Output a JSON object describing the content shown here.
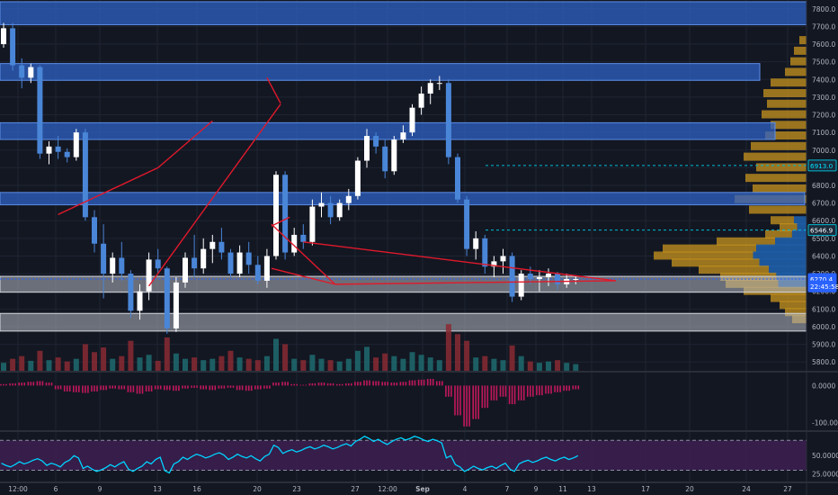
{
  "colors": {
    "background": "#131722",
    "grid": "#1e2433",
    "bullish": "#ffffff",
    "bearish": "#4a86d8",
    "trendline": "#e0192b",
    "resistance_zone": "#2f62c4",
    "support_zone": "#b4b8c1",
    "volume_up": "#1e6b6f",
    "volume_down": "#8a2a33",
    "macd_hist": "#c2185b",
    "rsi_line": "#00d4ff",
    "rsi_band": "#3b1e4f",
    "profile_gold": "#c8941e",
    "profile_blue": "#1f5ea8"
  },
  "chart_data": [
    {
      "type": "candlestick",
      "panel": "price",
      "ylim": [
        5750,
        7850
      ],
      "y_ticks": [
        "7800.0",
        "7700.0",
        "7600.0",
        "7500.0",
        "7400.0",
        "7300.0",
        "7200.0",
        "7100.0",
        "7000.0",
        "6900.0",
        "6800.0",
        "6700.0",
        "6600.0",
        "6500.0",
        "6400.0",
        "6300.0",
        "6200.0",
        "6100.0",
        "6000.0",
        "5900.0",
        "5800.0"
      ],
      "x_ticks": [
        "12:00",
        "6",
        "9",
        "13",
        "16",
        "20",
        "23",
        "27",
        "12:00",
        "Sep",
        "4",
        "7",
        "9",
        "11",
        "13",
        "17",
        "20",
        "24",
        "27"
      ],
      "grid": true,
      "price_labels": [
        {
          "label": "6913.0",
          "value": 6913
        },
        {
          "label": "6546.9",
          "value": 6547
        },
        {
          "label": "6270.4",
          "value": 6270
        },
        {
          "label": "22:45:58",
          "value": 6228
        }
      ],
      "zones": [
        {
          "type": "resistance",
          "low": 7710,
          "high": 7840,
          "x_end": 54
        },
        {
          "type": "resistance",
          "low": 7395,
          "high": 7490,
          "x_end": 46
        },
        {
          "type": "resistance",
          "low": 7060,
          "high": 7155,
          "x_end": 47
        },
        {
          "type": "resistance",
          "low": 6690,
          "high": 6760,
          "x_end": 48
        },
        {
          "type": "support",
          "low": 6195,
          "high": 6285,
          "x_end": 54
        },
        {
          "type": "support",
          "low": 5975,
          "high": 6075,
          "x_end": 54
        }
      ],
      "trendlines": [
        {
          "x1": 6,
          "y1": 6635,
          "x2": 17,
          "y2": 6900
        },
        {
          "x1": 17,
          "y1": 6900,
          "x2": 23,
          "y2": 7165
        },
        {
          "x1": 16,
          "y1": 6230,
          "x2": 30.5,
          "y2": 7260
        },
        {
          "x1": 29,
          "y1": 7410,
          "x2": 30.5,
          "y2": 7265
        },
        {
          "x1": 29.5,
          "y1": 6570,
          "x2": 31.5,
          "y2": 6620
        },
        {
          "x1": 29.5,
          "y1": 6330,
          "x2": 36.5,
          "y2": 6240
        },
        {
          "x1": 29.5,
          "y1": 6580,
          "x2": 36.5,
          "y2": 6240
        }
      ],
      "candles": [
        [
          7600,
          7720,
          7580,
          7690
        ],
        [
          7690,
          7720,
          7450,
          7480
        ],
        [
          7480,
          7520,
          7350,
          7410
        ],
        [
          7410,
          7490,
          7380,
          7470
        ],
        [
          7470,
          7480,
          6950,
          6980
        ],
        [
          6980,
          7050,
          6920,
          7020
        ],
        [
          7020,
          7080,
          6950,
          6990
        ],
        [
          6990,
          7010,
          6930,
          6960
        ],
        [
          6960,
          7120,
          6940,
          7100
        ],
        [
          7100,
          7120,
          6600,
          6620
        ],
        [
          6620,
          6660,
          6420,
          6470
        ],
        [
          6470,
          6580,
          6160,
          6300
        ],
        [
          6300,
          6420,
          6250,
          6390
        ],
        [
          6390,
          6480,
          6260,
          6300
        ],
        [
          6300,
          6320,
          6050,
          6090
        ],
        [
          6090,
          6240,
          6040,
          6200
        ],
        [
          6200,
          6420,
          6150,
          6380
        ],
        [
          6380,
          6440,
          6300,
          6330
        ],
        [
          6330,
          6340,
          5960,
          5990
        ],
        [
          5990,
          6280,
          5970,
          6250
        ],
        [
          6250,
          6420,
          6220,
          6390
        ],
        [
          6390,
          6520,
          6280,
          6330
        ],
        [
          6330,
          6500,
          6300,
          6440
        ],
        [
          6440,
          6520,
          6360,
          6480
        ],
        [
          6480,
          6560,
          6380,
          6420
        ],
        [
          6420,
          6440,
          6280,
          6300
        ],
        [
          6300,
          6460,
          6280,
          6420
        ],
        [
          6420,
          6480,
          6300,
          6350
        ],
        [
          6350,
          6400,
          6240,
          6260
        ],
        [
          6260,
          6440,
          6220,
          6400
        ],
        [
          6400,
          6880,
          6380,
          6860
        ],
        [
          6860,
          6880,
          6380,
          6420
        ],
        [
          6420,
          6560,
          6400,
          6520
        ],
        [
          6520,
          6580,
          6440,
          6480
        ],
        [
          6480,
          6720,
          6460,
          6680
        ],
        [
          6680,
          6760,
          6620,
          6700
        ],
        [
          6700,
          6740,
          6580,
          6620
        ],
        [
          6620,
          6720,
          6600,
          6700
        ],
        [
          6700,
          6780,
          6660,
          6740
        ],
        [
          6740,
          6960,
          6720,
          6940
        ],
        [
          6940,
          7120,
          6900,
          7080
        ],
        [
          7080,
          7100,
          6980,
          7020
        ],
        [
          7020,
          7060,
          6840,
          6880
        ],
        [
          6880,
          7080,
          6860,
          7060
        ],
        [
          7060,
          7140,
          7040,
          7100
        ],
        [
          7100,
          7260,
          7080,
          7240
        ],
        [
          7240,
          7360,
          7200,
          7320
        ],
        [
          7320,
          7400,
          7260,
          7380
        ],
        [
          7380,
          7420,
          7340,
          7380
        ],
        [
          7380,
          7400,
          6920,
          6960
        ],
        [
          6960,
          6980,
          6700,
          6720
        ],
        [
          6720,
          6740,
          6400,
          6440
        ],
        [
          6440,
          6540,
          6380,
          6500
        ],
        [
          6500,
          6520,
          6300,
          6340
        ],
        [
          6340,
          6400,
          6280,
          6370
        ],
        [
          6370,
          6440,
          6300,
          6400
        ],
        [
          6400,
          6420,
          6140,
          6170
        ],
        [
          6170,
          6320,
          6150,
          6300
        ],
        [
          6300,
          6340,
          6240,
          6270
        ],
        [
          6270,
          6320,
          6200,
          6280
        ],
        [
          6280,
          6330,
          6230,
          6300
        ],
        [
          6300,
          6310,
          6210,
          6240
        ],
        [
          6240,
          6300,
          6220,
          6270
        ],
        [
          6270,
          6290,
          6240,
          6270
        ]
      ]
    },
    {
      "type": "bar",
      "panel": "volume",
      "ylim": [
        0,
        100
      ],
      "values": [
        12,
        18,
        22,
        15,
        30,
        16,
        20,
        14,
        18,
        40,
        28,
        35,
        18,
        22,
        45,
        20,
        24,
        15,
        50,
        26,
        18,
        20,
        16,
        18,
        22,
        30,
        20,
        18,
        16,
        22,
        48,
        40,
        18,
        16,
        24,
        18,
        16,
        14,
        18,
        30,
        36,
        20,
        26,
        22,
        18,
        28,
        24,
        20,
        16,
        70,
        55,
        45,
        20,
        22,
        18,
        16,
        38,
        22,
        14,
        12,
        14,
        16,
        12,
        10
      ]
    },
    {
      "type": "bar",
      "panel": "macd",
      "y_ticks": [
        "0.0000",
        "-100.0000"
      ],
      "ylim": [
        -120,
        30
      ],
      "values": [
        4,
        6,
        8,
        10,
        12,
        8,
        -10,
        -16,
        -18,
        -20,
        -16,
        -12,
        -8,
        -10,
        -18,
        -22,
        -16,
        -10,
        -12,
        -14,
        -8,
        -6,
        -10,
        -12,
        -8,
        -6,
        -12,
        -14,
        -10,
        -8,
        8,
        10,
        4,
        2,
        6,
        8,
        6,
        4,
        6,
        10,
        14,
        12,
        10,
        8,
        10,
        14,
        16,
        18,
        12,
        -30,
        -80,
        -110,
        -90,
        -60,
        -40,
        -30,
        -50,
        -40,
        -30,
        -26,
        -22,
        -18,
        -14,
        -10
      ]
    },
    {
      "type": "line",
      "panel": "rsi",
      "y_ticks": [
        "50.0000",
        "25.0000"
      ],
      "ylim": [
        15,
        80
      ],
      "band": [
        30,
        70
      ],
      "values": [
        38,
        36,
        40,
        42,
        44,
        38,
        36,
        42,
        48,
        34,
        30,
        32,
        36,
        40,
        30,
        34,
        40,
        46,
        28,
        40,
        46,
        50,
        48,
        50,
        52,
        46,
        50,
        48,
        44,
        50,
        62,
        54,
        56,
        58,
        60,
        62,
        60,
        62,
        64,
        70,
        74,
        70,
        66,
        70,
        72,
        74,
        72,
        70,
        68,
        48,
        36,
        30,
        34,
        32,
        34,
        38,
        30,
        40,
        42,
        44,
        46,
        44,
        46,
        48
      ]
    }
  ]
}
